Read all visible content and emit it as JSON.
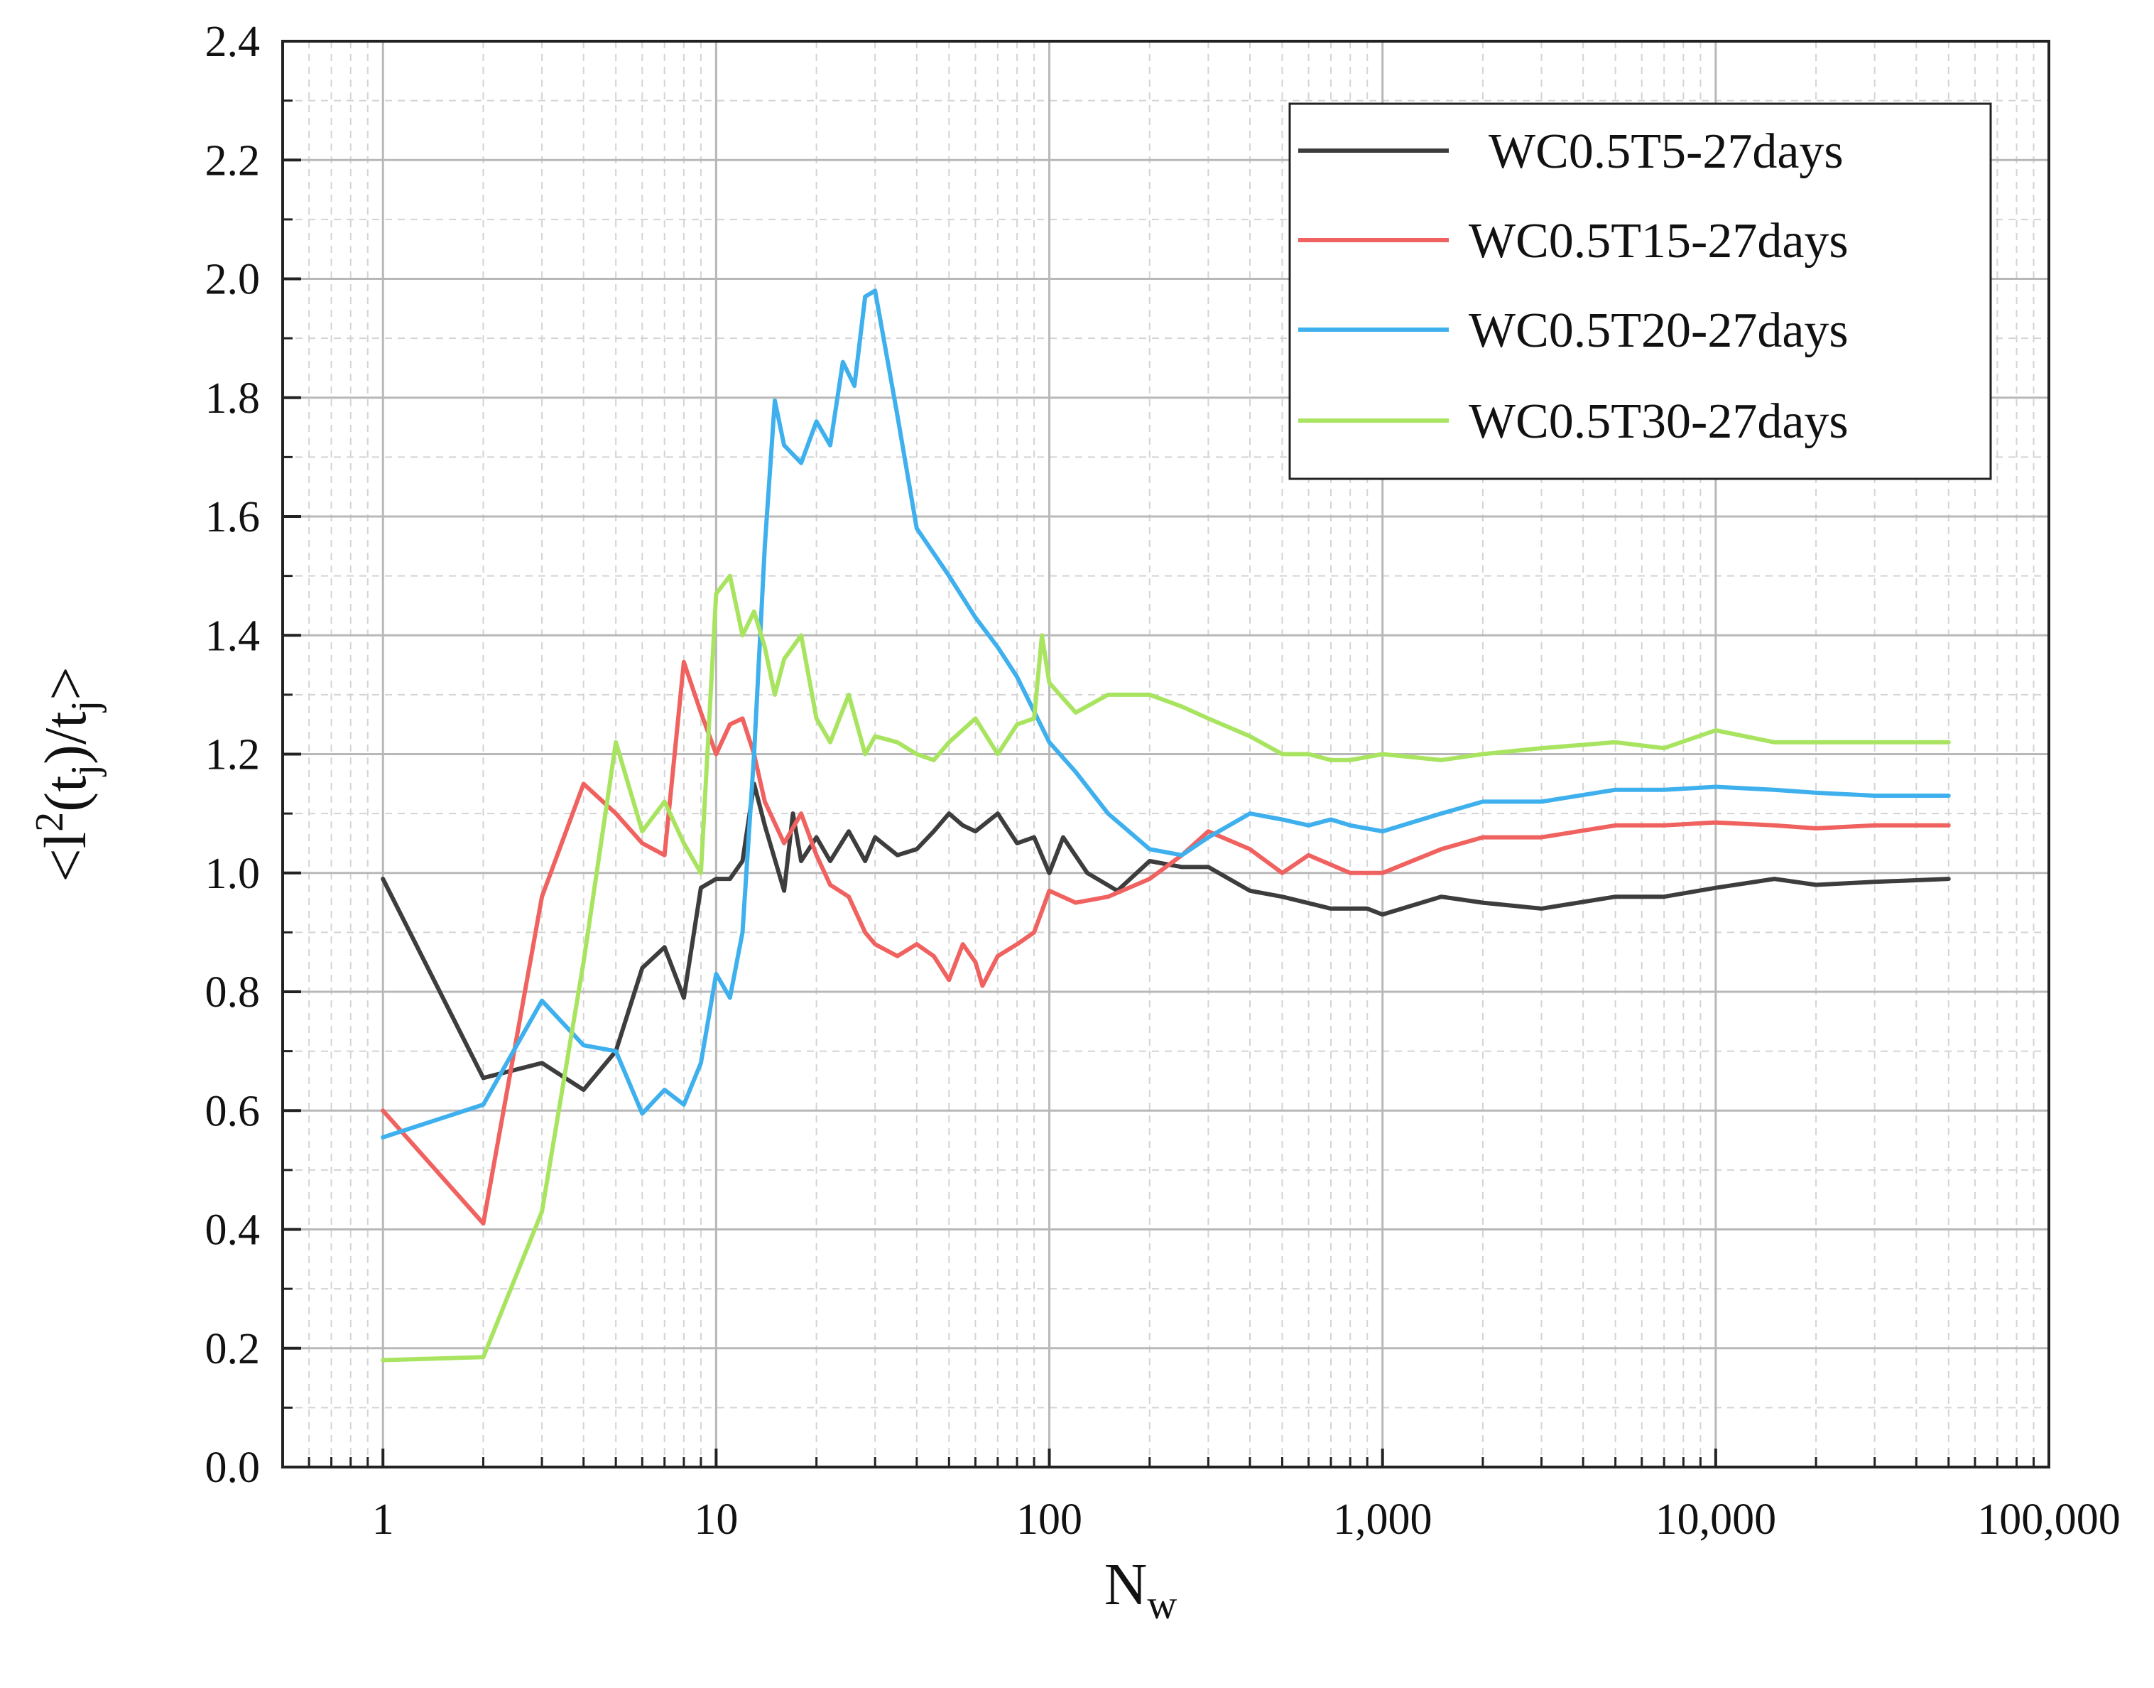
{
  "chart_data": {
    "type": "line",
    "title": "",
    "xlabel": "N",
    "xlabel_sub": "w",
    "ylabel_parts": [
      "<l",
      "2",
      "(t",
      "j",
      ")/t",
      "j",
      ">"
    ],
    "xscale": "log",
    "xlim": [
      0.5,
      100000
    ],
    "ylim": [
      0.0,
      2.4
    ],
    "x_ticks": [
      1,
      10,
      100,
      1000,
      10000,
      100000
    ],
    "x_tick_labels": [
      "1",
      "10",
      "100",
      "1,000",
      "10,000",
      "100,000"
    ],
    "y_ticks": [
      0.0,
      0.2,
      0.4,
      0.6,
      0.8,
      1.0,
      1.2,
      1.4,
      1.6,
      1.8,
      2.0,
      2.2,
      2.4
    ],
    "y_tick_labels": [
      "0.0",
      "0.2",
      "0.4",
      "0.6",
      "0.8",
      "1.0",
      "1.2",
      "1.4",
      "1.6",
      "1.8",
      "2.0",
      "2.2",
      "2.4"
    ],
    "grid": true,
    "legend_position": "top-right",
    "series": [
      {
        "name": "WC0.5T5-27days",
        "color": "#3d3d3d",
        "x": [
          1,
          2,
          3,
          4,
          5,
          6,
          7,
          8,
          9,
          10,
          11,
          12,
          13,
          14,
          16,
          17,
          18,
          20,
          22,
          25,
          28,
          30,
          35,
          40,
          45,
          50,
          55,
          60,
          70,
          80,
          90,
          100,
          110,
          130,
          160,
          200,
          250,
          300,
          400,
          500,
          700,
          900,
          1000,
          1500,
          2000,
          3000,
          5000,
          7000,
          10000,
          15000,
          20000,
          30000,
          50000
        ],
        "y": [
          0.99,
          0.655,
          0.68,
          0.635,
          0.7,
          0.84,
          0.875,
          0.79,
          0.975,
          0.99,
          0.99,
          1.02,
          1.15,
          1.08,
          0.97,
          1.1,
          1.02,
          1.06,
          1.02,
          1.07,
          1.02,
          1.06,
          1.03,
          1.04,
          1.07,
          1.1,
          1.08,
          1.07,
          1.1,
          1.05,
          1.06,
          1.0,
          1.06,
          1.0,
          0.97,
          1.02,
          1.01,
          1.01,
          0.97,
          0.96,
          0.94,
          0.94,
          0.93,
          0.96,
          0.95,
          0.94,
          0.96,
          0.96,
          0.975,
          0.99,
          0.98,
          0.985,
          0.99
        ]
      },
      {
        "name": "WC0.5T15-27days",
        "color": "#f0625f",
        "x": [
          1,
          2,
          3,
          4,
          5,
          6,
          7,
          8,
          9,
          10,
          11,
          12,
          13,
          14,
          16,
          18,
          20,
          22,
          25,
          28,
          30,
          35,
          40,
          45,
          50,
          55,
          60,
          63,
          70,
          80,
          90,
          100,
          120,
          150,
          200,
          250,
          300,
          400,
          500,
          600,
          800,
          1000,
          1500,
          2000,
          3000,
          5000,
          7000,
          10000,
          15000,
          20000,
          30000,
          50000
        ],
        "y": [
          0.6,
          0.41,
          0.96,
          1.15,
          1.1,
          1.05,
          1.03,
          1.355,
          1.27,
          1.2,
          1.25,
          1.26,
          1.2,
          1.12,
          1.05,
          1.1,
          1.03,
          0.98,
          0.96,
          0.9,
          0.88,
          0.86,
          0.88,
          0.86,
          0.82,
          0.88,
          0.85,
          0.81,
          0.86,
          0.88,
          0.9,
          0.97,
          0.95,
          0.96,
          0.99,
          1.03,
          1.07,
          1.04,
          1.0,
          1.03,
          1.0,
          1.0,
          1.04,
          1.06,
          1.06,
          1.08,
          1.08,
          1.085,
          1.08,
          1.075,
          1.08,
          1.08
        ]
      },
      {
        "name": "WC0.5T20-27days",
        "color": "#3fb0ee",
        "x": [
          1,
          2,
          3,
          4,
          5,
          6,
          7,
          8,
          9,
          10,
          11,
          12,
          13,
          14,
          15,
          16,
          18,
          20,
          22,
          24,
          26,
          28,
          30,
          35,
          40,
          50,
          60,
          70,
          80,
          100,
          120,
          150,
          200,
          250,
          300,
          400,
          500,
          600,
          700,
          800,
          1000,
          1500,
          2000,
          3000,
          5000,
          7000,
          10000,
          15000,
          20000,
          30000,
          50000
        ],
        "y": [
          0.555,
          0.61,
          0.785,
          0.71,
          0.7,
          0.595,
          0.635,
          0.61,
          0.68,
          0.83,
          0.79,
          0.9,
          1.2,
          1.55,
          1.795,
          1.72,
          1.69,
          1.76,
          1.72,
          1.86,
          1.82,
          1.97,
          1.98,
          1.77,
          1.58,
          1.5,
          1.43,
          1.38,
          1.33,
          1.22,
          1.17,
          1.1,
          1.04,
          1.03,
          1.06,
          1.1,
          1.09,
          1.08,
          1.09,
          1.08,
          1.07,
          1.1,
          1.12,
          1.12,
          1.14,
          1.14,
          1.145,
          1.14,
          1.135,
          1.13,
          1.13
        ]
      },
      {
        "name": "WC0.5T30-27days",
        "color": "#a9e461",
        "x": [
          1,
          2,
          3,
          4,
          5,
          6,
          7,
          8,
          9,
          10,
          11,
          12,
          13,
          14,
          15,
          16,
          18,
          20,
          22,
          25,
          28,
          30,
          35,
          40,
          45,
          50,
          60,
          70,
          80,
          90,
          95,
          100,
          120,
          150,
          200,
          250,
          300,
          400,
          500,
          600,
          700,
          800,
          1000,
          1500,
          2000,
          3000,
          5000,
          7000,
          10000,
          15000,
          20000,
          30000,
          50000
        ],
        "y": [
          0.18,
          0.185,
          0.43,
          0.85,
          1.22,
          1.07,
          1.12,
          1.05,
          1.0,
          1.47,
          1.5,
          1.4,
          1.44,
          1.38,
          1.3,
          1.36,
          1.4,
          1.26,
          1.22,
          1.3,
          1.2,
          1.23,
          1.22,
          1.2,
          1.19,
          1.22,
          1.26,
          1.2,
          1.25,
          1.26,
          1.4,
          1.32,
          1.27,
          1.3,
          1.3,
          1.28,
          1.26,
          1.23,
          1.2,
          1.2,
          1.19,
          1.19,
          1.2,
          1.19,
          1.2,
          1.21,
          1.22,
          1.21,
          1.24,
          1.22,
          1.22,
          1.22,
          1.22
        ]
      }
    ]
  }
}
